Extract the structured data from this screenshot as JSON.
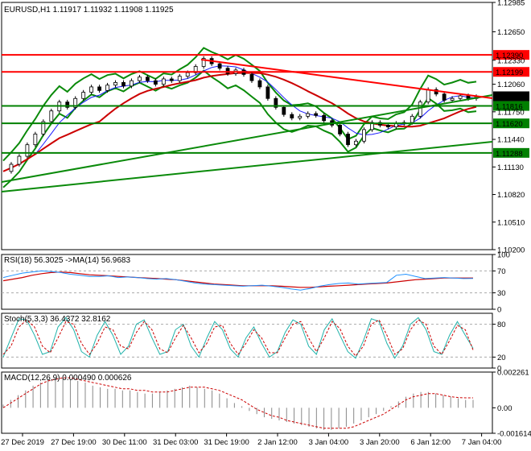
{
  "chart_data": {
    "type": "line",
    "title": "EURUSD,H1 1.11917 1.11932 1.11908 1.11925",
    "price_panel": {
      "ylim": [
        1.102,
        1.1298
      ],
      "yticks": [
        1.1298,
        1.1265,
        1.1233,
        1.1206,
        1.1175,
        1.1144,
        1.1113,
        1.1082,
        1.1051,
        1.102
      ],
      "ytick_labels": [
        "1.12985",
        "1.12650",
        "1.12330",
        "1.12060",
        "1.11750",
        "1.11440",
        "1.11130",
        "1.10820",
        "1.10510",
        "1.10200"
      ],
      "current_price_label": "1.11925",
      "current_price": 1.11925,
      "horizontal_levels": [
        {
          "label": "1.12390",
          "value": 1.1239,
          "color": "#ff0000"
        },
        {
          "label": "1.12199",
          "value": 1.12199,
          "color": "#ff0000"
        },
        {
          "label": "1.11816",
          "value": 1.11816,
          "color": "#008000"
        },
        {
          "label": "1.11620",
          "value": 1.1162,
          "color": "#008000"
        },
        {
          "label": "1.11288",
          "value": 1.11288,
          "color": "#008000"
        }
      ],
      "close_series": [
        1.1108,
        1.1116,
        1.1125,
        1.1138,
        1.115,
        1.1164,
        1.1176,
        1.1186,
        1.118,
        1.119,
        1.1197,
        1.1203,
        1.1199,
        1.1205,
        1.1208,
        1.1204,
        1.121,
        1.1214,
        1.121,
        1.1206,
        1.1212,
        1.121,
        1.1215,
        1.1219,
        1.1226,
        1.1235,
        1.1229,
        1.1224,
        1.1218,
        1.1222,
        1.1217,
        1.121,
        1.1203,
        1.119,
        1.118,
        1.1172,
        1.1168,
        1.117,
        1.1173,
        1.1171,
        1.1165,
        1.116,
        1.115,
        1.1138,
        1.1142,
        1.1155,
        1.1163,
        1.116,
        1.1158,
        1.1162,
        1.1163,
        1.117,
        1.1186,
        1.12,
        1.1195,
        1.1188,
        1.119,
        1.1193,
        1.119,
        1.1192
      ]
    },
    "rsi_panel": {
      "label": "RSI(18) 56.3025 ->MA(14) 56.9683",
      "ylim": [
        0,
        100
      ],
      "yticks": [
        100,
        70,
        30,
        0
      ],
      "ytick_labels": [
        "100",
        "70",
        "30",
        "0"
      ],
      "rsi_values": [
        58,
        62,
        66,
        68,
        70,
        69,
        67,
        64,
        62,
        60,
        60,
        61,
        58,
        59,
        58,
        56,
        55,
        56,
        54,
        51,
        48,
        46,
        45,
        44,
        43,
        42,
        43,
        44,
        42,
        40,
        37,
        35,
        38,
        42,
        45,
        47,
        48,
        46,
        47,
        48,
        49,
        62,
        64,
        60,
        56,
        57,
        58,
        57,
        56,
        56.3
      ],
      "ma_values": [
        52,
        55,
        58,
        62,
        65,
        67,
        68,
        67,
        65,
        63,
        62,
        61,
        60,
        59,
        58,
        57,
        56,
        55,
        54,
        52,
        50,
        48,
        46,
        45,
        44,
        43,
        43,
        43,
        43,
        42,
        41,
        40,
        40,
        41,
        42,
        43,
        44,
        45,
        46,
        47,
        48,
        50,
        52,
        54,
        55,
        56,
        57,
        57,
        57,
        57
      ]
    },
    "stoch_panel": {
      "label": "Stoch(5,3,3) 36.4372 32.8162",
      "ylim": [
        0,
        100
      ],
      "yticks": [
        80,
        20,
        0
      ],
      "ytick_labels": [
        "80",
        "20",
        "0"
      ],
      "k_values": [
        20,
        55,
        90,
        88,
        60,
        25,
        30,
        75,
        92,
        70,
        30,
        20,
        60,
        85,
        60,
        25,
        40,
        80,
        88,
        55,
        25,
        30,
        70,
        80,
        40,
        20,
        55,
        85,
        70,
        35,
        20,
        55,
        75,
        45,
        20,
        30,
        65,
        88,
        80,
        40,
        25,
        70,
        90,
        60,
        30,
        18,
        50,
        90,
        85,
        45,
        18,
        40,
        80,
        92,
        70,
        30,
        25,
        60,
        85,
        60,
        36
      ],
      "d_values": [
        25,
        40,
        75,
        88,
        75,
        40,
        28,
        55,
        85,
        80,
        45,
        25,
        45,
        75,
        70,
        40,
        35,
        65,
        85,
        70,
        35,
        28,
        55,
        78,
        55,
        28,
        45,
        75,
        78,
        45,
        25,
        45,
        70,
        55,
        28,
        28,
        55,
        80,
        85,
        55,
        30,
        55,
        85,
        72,
        40,
        22,
        40,
        80,
        88,
        60,
        25,
        35,
        70,
        88,
        80,
        40,
        25,
        50,
        78,
        70,
        33
      ]
    },
    "macd_panel": {
      "label": "MACD(12,26,9) 0.000490 0.000626",
      "ylim": [
        -0.001614,
        0.002261
      ],
      "yticks": [
        0.002261,
        0.0,
        -0.001614
      ],
      "ytick_labels": [
        "0.002261",
        "0.00",
        "-0.001614"
      ],
      "histogram": [
        0.0002,
        0.0005,
        0.0008,
        0.0011,
        0.0014,
        0.0016,
        0.0018,
        0.0019,
        0.0019,
        0.0018,
        0.0017,
        0.0016,
        0.0014,
        0.0013,
        0.0012,
        0.0012,
        0.0011,
        0.0011,
        0.001,
        0.0009,
        0.0009,
        0.001,
        0.0011,
        0.0012,
        0.0013,
        0.0014,
        0.0013,
        0.0012,
        0.0011,
        0.0009,
        0.0006,
        0.0003,
        0.0001,
        -0.0002,
        -0.0004,
        -0.0006,
        -0.0007,
        -0.0008,
        -0.0009,
        -0.001,
        -0.0011,
        -0.0012,
        -0.0013,
        -0.0014,
        -0.0014,
        -0.0013,
        -0.0012,
        -0.001,
        -0.0008,
        -0.0006,
        -0.0004,
        -0.0002,
        0.0001,
        0.0004,
        0.0007,
        0.0009,
        0.001,
        0.001,
        0.0009,
        0.0008,
        0.0007,
        0.0006,
        0.0005,
        0.0005
      ],
      "signal": [
        0.0,
        0.0003,
        0.0006,
        0.0009,
        0.0012,
        0.0015,
        0.0017,
        0.0018,
        0.0019,
        0.0019,
        0.0018,
        0.0017,
        0.0016,
        0.0015,
        0.0014,
        0.0013,
        0.0012,
        0.0012,
        0.0011,
        0.0011,
        0.001,
        0.001,
        0.001,
        0.0011,
        0.0012,
        0.0013,
        0.0013,
        0.0013,
        0.0012,
        0.0011,
        0.0009,
        0.0007,
        0.0005,
        0.0002,
        -0.0001,
        -0.0003,
        -0.0005,
        -0.0006,
        -0.0008,
        -0.0009,
        -0.001,
        -0.0011,
        -0.0012,
        -0.0013,
        -0.0013,
        -0.0013,
        -0.0013,
        -0.0012,
        -0.001,
        -0.0008,
        -0.0006,
        -0.0004,
        -0.0001,
        0.0002,
        0.0005,
        0.0007,
        0.0008,
        0.0009,
        0.0009,
        0.0008,
        0.0007,
        0.00065,
        0.00063,
        0.00063
      ]
    },
    "x_tick_labels": [
      "27 Dec 2019",
      "27 Dec 19:00",
      "30 Dec 11:00",
      "31 Dec 03:00",
      "31 Dec 19:00",
      "2 Jan 12:00",
      "3 Jan 04:00",
      "3 Jan 20:00",
      "6 Jan 12:00",
      "7 Jan 04:00"
    ]
  }
}
